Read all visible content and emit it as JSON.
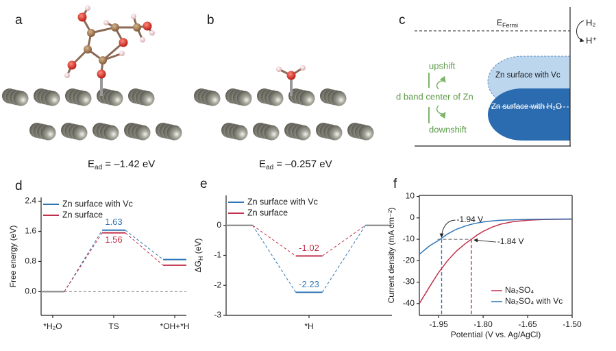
{
  "panels": {
    "a": {
      "label": "a",
      "energy": {
        "main": "E",
        "sub": "ad",
        "rest": " = –1.42 eV"
      }
    },
    "b": {
      "label": "b",
      "energy": {
        "main": "E",
        "sub": "ad",
        "rest": " = –0.257 eV"
      }
    },
    "c": {
      "label": "c",
      "fermi": {
        "main": "E",
        "sub": "Fermi"
      },
      "h2": "H₂",
      "hplus": "H⁺",
      "upshift": "upshift",
      "center": "d band center of Zn",
      "downshift": "downshift",
      "vc": "Zn surface with Vc",
      "h2o": "Zn surface with H₂O"
    }
  },
  "chart_data": [
    {
      "panel": "d",
      "type": "level",
      "ylabel": "Free energy (eV)",
      "categories": [
        "*H₂O",
        "TS",
        "*OH+*H"
      ],
      "series": [
        {
          "name": "Zn surface with Vc",
          "color": "#2e75b6",
          "values": [
            0,
            1.63,
            0.85
          ],
          "value_labels": [
            null,
            "1.63",
            null
          ],
          "label_position": "above"
        },
        {
          "name": "Zn surface",
          "color": "#c0304a",
          "values": [
            0,
            1.56,
            0.7
          ],
          "value_labels": [
            null,
            "1.56",
            null
          ],
          "label_position": "below"
        }
      ],
      "ylim": [
        -0.63,
        2.5
      ],
      "yticks": [
        {
          "value": 0,
          "label": "0.0"
        },
        {
          "value": 0.8,
          "label": "0.8"
        },
        {
          "value": 1.6,
          "label": "1.6"
        },
        {
          "value": 2.4,
          "label": "2.4"
        }
      ],
      "zero_line": true,
      "zero_color": "#8c8c8c",
      "legend": "upper left"
    },
    {
      "panel": "e",
      "type": "level",
      "ylabel": {
        "main": "ΔG",
        "sub": "H",
        "rest": " (eV)"
      },
      "categories": [
        null,
        "*H",
        null
      ],
      "series": [
        {
          "name": "Zn surface with Vc",
          "color": "#2e75b6",
          "values": [
            0,
            -2.23,
            0
          ],
          "value_labels": [
            null,
            "-2.23",
            null
          ],
          "label_position": "above"
        },
        {
          "name": "Zn surface",
          "color": "#c0304a",
          "values": [
            0,
            -1.02,
            0
          ],
          "value_labels": [
            null,
            "-1.02",
            null
          ],
          "label_position": "above"
        }
      ],
      "ylim": [
        -3,
        1
      ],
      "yticks": [
        0,
        -1,
        -2,
        -3
      ],
      "zero_line": false,
      "zero_color": "#8c8c8c",
      "legend": "upper left"
    },
    {
      "panel": "f",
      "type": "line",
      "xlabel": "Potential (V vs. Ag/AgCl)",
      "ylabel": "Current density (mA cm⁻²)",
      "x": [
        -2.015,
        -1.98,
        -1.95,
        -1.92,
        -1.89,
        -1.86,
        -1.84,
        -1.82,
        -1.8,
        -1.77,
        -1.74,
        -1.7,
        -1.65,
        -1.6,
        -1.5
      ],
      "series": [
        {
          "name": "Na₂SO₄",
          "color": "#c0304a",
          "values": [
            -40,
            -32,
            -25.5,
            -20,
            -15.5,
            -12,
            -10,
            -8,
            -6.3,
            -4.3,
            -2.9,
            -1.8,
            -1.1,
            -0.8,
            -0.6
          ]
        },
        {
          "name": "Na₂SO₄ with Vc",
          "color": "#2e75b6",
          "values": [
            -17,
            -13,
            -10.5,
            -7.5,
            -5.3,
            -3.8,
            -3,
            -2.4,
            -1.9,
            -1.4,
            -1.1,
            -0.9,
            -0.7,
            -0.6,
            -0.5
          ]
        }
      ],
      "xlim": [
        -2.015,
        -1.5
      ],
      "xticks": [
        -1.95,
        {
          "value": -1.8,
          "label": "-1.80"
        },
        -1.65,
        {
          "value": -1.5,
          "label": "-1.50"
        }
      ],
      "ylim": [
        -45.5,
        10.5
      ],
      "yticks": [
        10,
        0,
        -10,
        -20,
        -30,
        -40
      ],
      "annotations": [
        {
          "text": "-1.94 V",
          "x": -1.94,
          "y": -10,
          "color": "#2e75b6"
        },
        {
          "text": "-1.84 V",
          "x": -1.84,
          "y": -10,
          "color": "#c0304a"
        }
      ],
      "legend": "lower right"
    }
  ]
}
